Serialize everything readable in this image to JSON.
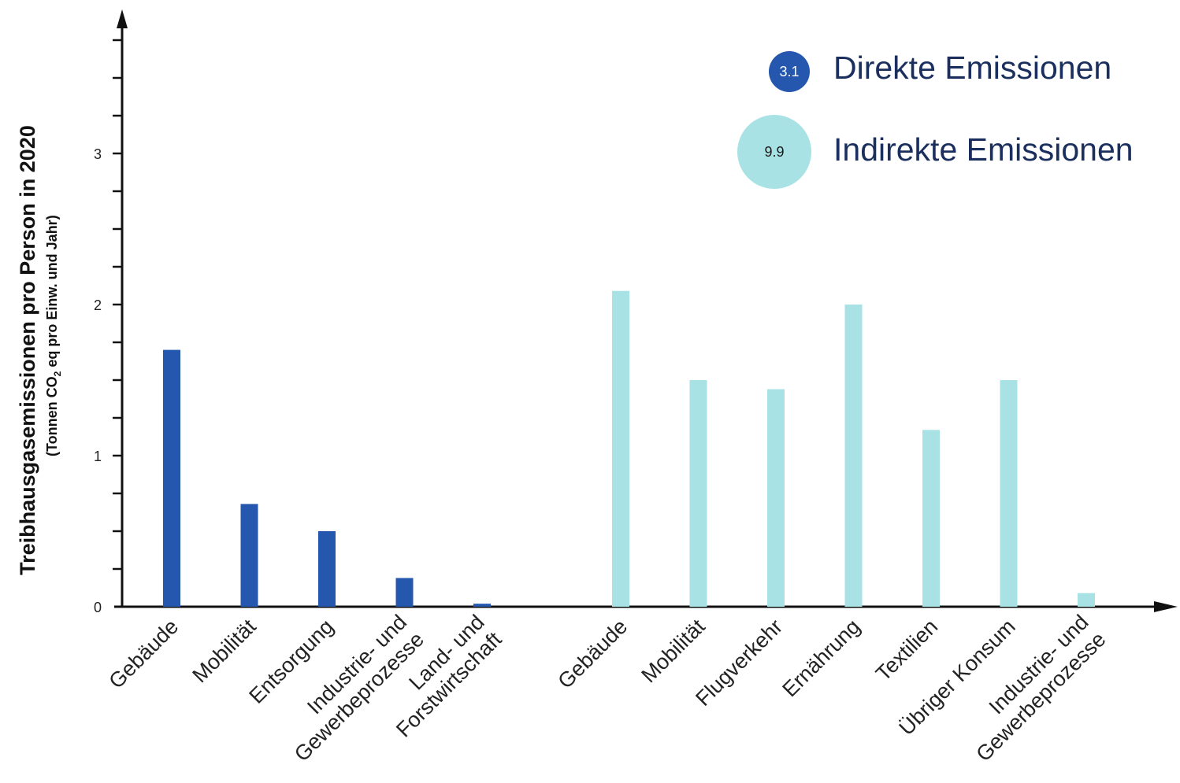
{
  "chart_data": {
    "type": "bar",
    "ylabel": "Treibhausgasemissionen pro Person in 2020",
    "ylabel_sub_prefix": "(Tonnen CO",
    "ylabel_sub_subscript": "2",
    "ylabel_sub_suffix": " eq pro Einw. und Jahr)",
    "ylim": [
      0,
      3.9
    ],
    "yticks": [
      0,
      1,
      2,
      3
    ],
    "minor_tick_step": 0.25,
    "legend_position": "top-right",
    "series": [
      {
        "name": "Direkte Emissionen",
        "total_label": "3.1",
        "color": "#2457ad",
        "categories": [
          "Gebäude",
          "Mobilität",
          "Entsorgung",
          "Industrie- und Gewerbeprozesse",
          "Land- und Forstwirtschaft"
        ],
        "values": [
          1.7,
          0.68,
          0.5,
          0.19,
          0.02
        ]
      },
      {
        "name": "Indirekte Emissionen",
        "total_label": "9.9",
        "color": "#a8e2e5",
        "categories": [
          "Gebäude",
          "Mobilität",
          "Flugverkehr",
          "Ernährung",
          "Textilien",
          "Übriger Konsum",
          "Industrie- und Gewerbeprozesse"
        ],
        "values": [
          2.09,
          1.5,
          1.44,
          2.0,
          1.17,
          1.5,
          0.09
        ]
      }
    ]
  }
}
